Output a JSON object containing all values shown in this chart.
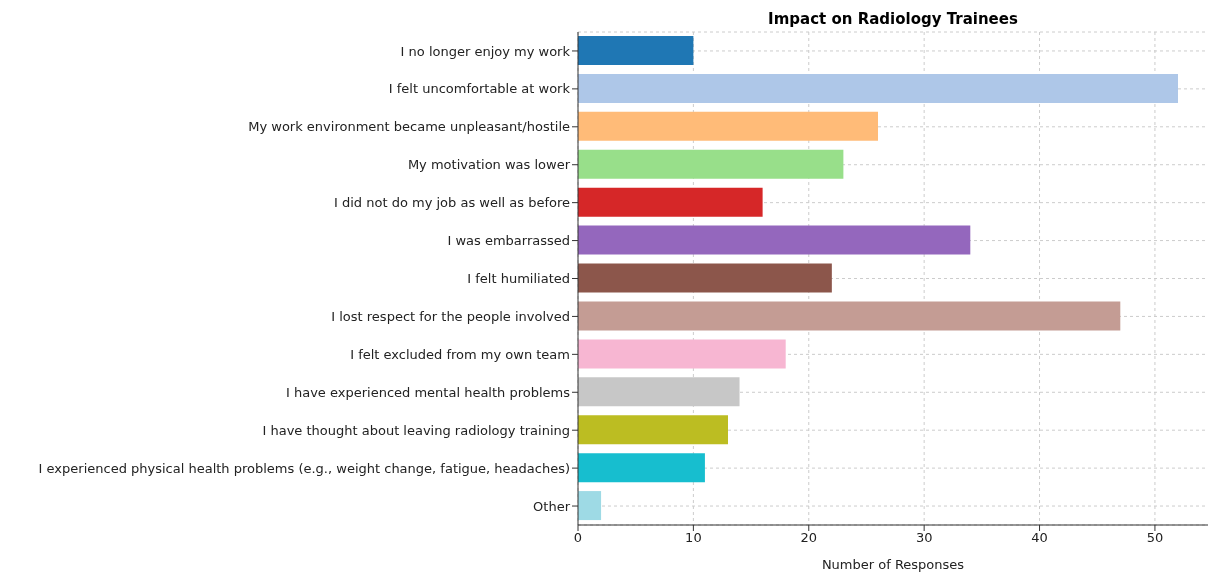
{
  "chart_data": {
    "type": "bar",
    "orientation": "horizontal",
    "title": "Impact on Radiology Trainees",
    "xlabel": "Number of Responses",
    "categories": [
      "I no longer enjoy my work",
      "I felt uncomfortable at work",
      "My work environment became unpleasant/hostile",
      "My motivation was lower",
      "I did not do my job as well as before",
      "I was embarrassed",
      "I felt humiliated",
      "I lost respect for the people involved",
      "I felt excluded from my own team",
      "I have experienced mental health problems",
      "I have thought about leaving radiology training",
      "I experienced physical health problems (e.g., weight change, fatigue, headaches)",
      "Other"
    ],
    "values": [
      10,
      52,
      26,
      23,
      16,
      34,
      22,
      47,
      18,
      14,
      13,
      11,
      2
    ],
    "colors": [
      "#1f77b4",
      "#aec7e8",
      "#ffbb78",
      "#98df8a",
      "#d62728",
      "#9467bd",
      "#8c564b",
      "#c49c94",
      "#f7b6d2",
      "#c7c7c7",
      "#bcbd22",
      "#17becf",
      "#9edae5"
    ],
    "xlim": [
      0,
      54.6
    ],
    "xticks": [
      0,
      10,
      20,
      30,
      40,
      50
    ],
    "grid": true
  }
}
